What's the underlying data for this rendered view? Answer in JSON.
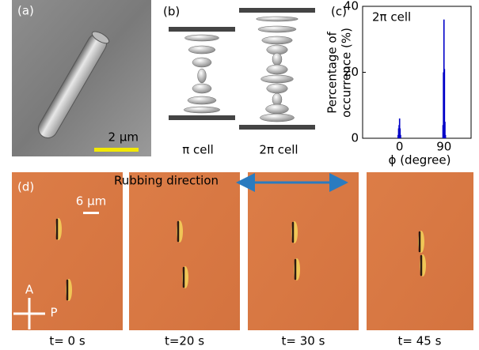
{
  "panels": {
    "a": {
      "label": "(a)",
      "scale": "2 μm"
    },
    "b": {
      "label": "(b)",
      "captions": [
        "π cell",
        "2π cell"
      ]
    },
    "c": {
      "label": "(c)"
    },
    "d": {
      "label": "(d)",
      "scale": "6 μm",
      "direction": "Rubbing direction",
      "analyzer": "A",
      "polarizer": "P",
      "times": [
        "t= 0 s",
        "t=20 s",
        "t= 30 s",
        "t= 45 s"
      ]
    }
  },
  "chart_data": {
    "type": "bar",
    "title": "2π cell",
    "x": [
      -3,
      -2,
      -1,
      0,
      1,
      2,
      88,
      89,
      90,
      91,
      92,
      93
    ],
    "values": [
      1,
      3,
      4,
      6,
      3,
      1,
      4,
      20,
      36,
      21,
      5,
      1
    ],
    "color": "#0000c8",
    "xlim": [
      -75,
      145
    ],
    "ylim": [
      0,
      40
    ],
    "xticks": [
      0,
      90
    ],
    "yticks": [
      0,
      20,
      40
    ],
    "xlabel": "ϕ (degree)",
    "ylabel": [
      "Percentage of",
      "occurrence (%)"
    ]
  }
}
